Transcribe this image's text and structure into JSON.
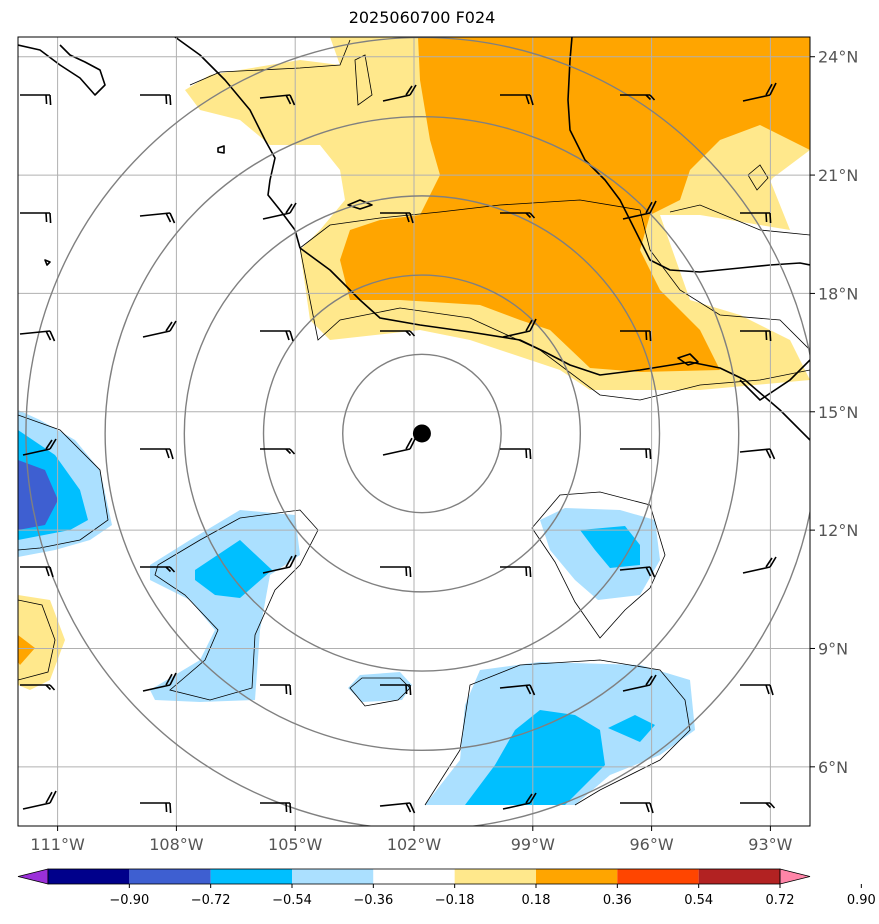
{
  "title": "2025060700 F024",
  "map": {
    "lon_range": [
      -112,
      -92
    ],
    "lat_range": [
      4.5,
      24.5
    ],
    "center_marker": {
      "lon": -101.8,
      "lat": 14.45
    },
    "range_rings_deg": [
      2,
      4,
      6,
      8,
      10
    ],
    "lon_ticks": [
      {
        "value": -111,
        "label": "111°W"
      },
      {
        "value": -108,
        "label": "108°W"
      },
      {
        "value": -105,
        "label": "105°W"
      },
      {
        "value": -102,
        "label": "102°W"
      },
      {
        "value": -99,
        "label": "99°W"
      },
      {
        "value": -96,
        "label": "96°W"
      },
      {
        "value": -93,
        "label": "93°W"
      }
    ],
    "lat_ticks": [
      {
        "value": 24,
        "label": "24°N"
      },
      {
        "value": 21,
        "label": "21°N"
      },
      {
        "value": 18,
        "label": "18°N"
      },
      {
        "value": 15,
        "label": "15°N"
      },
      {
        "value": 12,
        "label": "12°N"
      },
      {
        "value": 9,
        "label": "9°N"
      },
      {
        "value": 6,
        "label": "6°N"
      }
    ],
    "colors": {
      "light_yellow": "#ffe88c",
      "orange": "#ffa500",
      "light_blue": "#abe0ff",
      "cyan": "#00bfff",
      "royal_blue": "#3e5fd1",
      "grid": "#b0b0b0",
      "ring": "#808080"
    }
  },
  "colorbar": {
    "colors": [
      "#9b30d9",
      "#00008b",
      "#3e5fd1",
      "#00bfff",
      "#abe0ff",
      "#ffffff",
      "#ffe88c",
      "#ffa500",
      "#ff4500",
      "#b22222",
      "#ff85a8"
    ],
    "labels": [
      "−0.90",
      "−0.72",
      "−0.54",
      "−0.36",
      "−0.18",
      "0.18",
      "0.36",
      "0.54",
      "0.72",
      "0.90"
    ]
  }
}
